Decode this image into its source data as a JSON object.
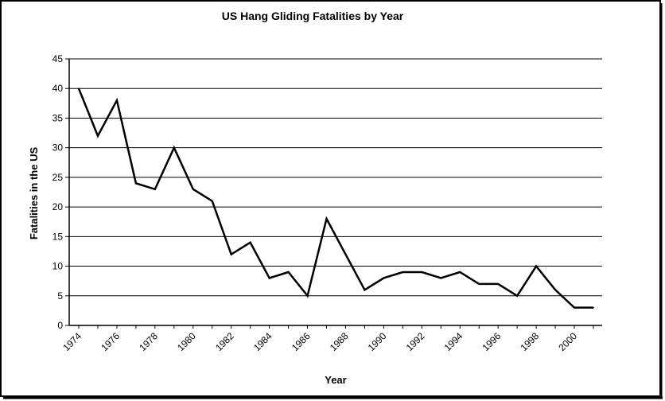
{
  "chart_data": {
    "type": "line",
    "title": "US Hang Gliding Fatalities by Year",
    "xlabel": "Year",
    "ylabel": "Fatalities in the US",
    "xlim": [
      1974,
      2001
    ],
    "ylim": [
      0,
      45
    ],
    "yticks": [
      0,
      5,
      10,
      15,
      20,
      25,
      30,
      35,
      40,
      45
    ],
    "xticks": [
      1974,
      1976,
      1978,
      1980,
      1982,
      1984,
      1986,
      1988,
      1990,
      1992,
      1994,
      1996,
      1998,
      2000
    ],
    "grid": true,
    "legend": "none",
    "colors": {
      "line": "#000000",
      "grid": "#000000",
      "background": "#ffffff"
    },
    "series": [
      {
        "x": [
          1974,
          1975,
          1976,
          1977,
          1978,
          1979,
          1980,
          1981,
          1982,
          1983,
          1984,
          1985,
          1986,
          1987,
          1988,
          1989,
          1990,
          1991,
          1992,
          1993,
          1994,
          1995,
          1996,
          1997,
          1998,
          1999,
          2000,
          2001
        ],
        "values": [
          40,
          32,
          38,
          24,
          23,
          30,
          23,
          21,
          12,
          14,
          8,
          9,
          5,
          18,
          12,
          6,
          8,
          9,
          9,
          8,
          9,
          7,
          7,
          5,
          10,
          6,
          3,
          3
        ]
      }
    ]
  }
}
